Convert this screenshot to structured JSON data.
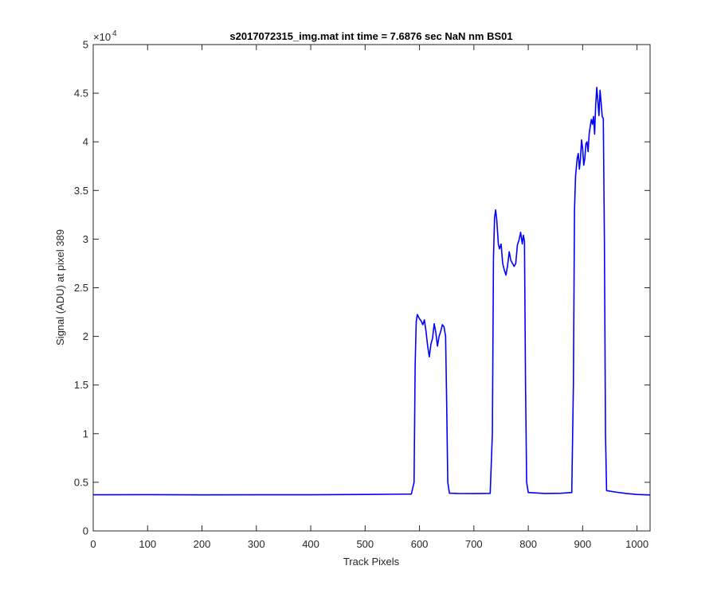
{
  "chart_data": {
    "type": "line",
    "title": "s2017072315_img.mat int time = 7.6876 sec  NaN nm BS01",
    "xlabel": "Track Pixels",
    "ylabel": "Signal (ADU) at pixel 389",
    "xlim": [
      0,
      1024
    ],
    "ylim": [
      0,
      50000
    ],
    "x_ticks": [
      0,
      100,
      200,
      300,
      400,
      500,
      600,
      700,
      800,
      900,
      1000
    ],
    "x_tick_labels": [
      "0",
      "100",
      "200",
      "300",
      "400",
      "500",
      "600",
      "700",
      "800",
      "900",
      "1000"
    ],
    "y_ticks": [
      0,
      5000,
      10000,
      15000,
      20000,
      25000,
      30000,
      35000,
      40000,
      45000,
      50000
    ],
    "y_tick_labels": [
      "0",
      "0.5",
      "1",
      "1.5",
      "2",
      "2.5",
      "3",
      "3.5",
      "4",
      "4.5",
      "5"
    ],
    "y_exponent": "×10",
    "y_exponent_power": "4",
    "grid": false,
    "series": [
      {
        "color": "#0000ff",
        "points": [
          [
            0,
            3720
          ],
          [
            100,
            3730
          ],
          [
            200,
            3710
          ],
          [
            300,
            3715
          ],
          [
            400,
            3720
          ],
          [
            500,
            3750
          ],
          [
            585,
            3790
          ],
          [
            590,
            5000
          ],
          [
            592,
            17000
          ],
          [
            594,
            21500
          ],
          [
            596,
            22250
          ],
          [
            600,
            21800
          ],
          [
            603,
            21600
          ],
          [
            606,
            21200
          ],
          [
            609,
            21700
          ],
          [
            612,
            20500
          ],
          [
            615,
            19000
          ],
          [
            618,
            17900
          ],
          [
            621,
            19200
          ],
          [
            624,
            19800
          ],
          [
            627,
            21300
          ],
          [
            630,
            20400
          ],
          [
            633,
            19000
          ],
          [
            636,
            20000
          ],
          [
            639,
            20500
          ],
          [
            642,
            21200
          ],
          [
            645,
            21000
          ],
          [
            648,
            20000
          ],
          [
            650,
            13000
          ],
          [
            652,
            5000
          ],
          [
            655,
            3880
          ],
          [
            670,
            3850
          ],
          [
            700,
            3840
          ],
          [
            730,
            3860
          ],
          [
            734,
            10000
          ],
          [
            736,
            28000
          ],
          [
            738,
            32200
          ],
          [
            740,
            33000
          ],
          [
            742,
            32000
          ],
          [
            745,
            29500
          ],
          [
            747,
            29000
          ],
          [
            750,
            29500
          ],
          [
            753,
            27500
          ],
          [
            756,
            26800
          ],
          [
            759,
            26300
          ],
          [
            762,
            27300
          ],
          [
            765,
            28700
          ],
          [
            768,
            27800
          ],
          [
            771,
            27500
          ],
          [
            774,
            27200
          ],
          [
            777,
            27500
          ],
          [
            780,
            29400
          ],
          [
            783,
            29900
          ],
          [
            786,
            30700
          ],
          [
            789,
            29500
          ],
          [
            791,
            30400
          ],
          [
            793,
            29800
          ],
          [
            795,
            15000
          ],
          [
            797,
            5000
          ],
          [
            800,
            3950
          ],
          [
            830,
            3850
          ],
          [
            860,
            3870
          ],
          [
            880,
            3950
          ],
          [
            883,
            15000
          ],
          [
            885,
            33000
          ],
          [
            887,
            36500
          ],
          [
            890,
            38300
          ],
          [
            892,
            38800
          ],
          [
            894,
            37200
          ],
          [
            896,
            38300
          ],
          [
            898,
            40200
          ],
          [
            900,
            39300
          ],
          [
            902,
            37600
          ],
          [
            904,
            38300
          ],
          [
            906,
            39800
          ],
          [
            908,
            40000
          ],
          [
            910,
            39000
          ],
          [
            912,
            40800
          ],
          [
            914,
            41600
          ],
          [
            916,
            42300
          ],
          [
            918,
            41800
          ],
          [
            920,
            42600
          ],
          [
            922,
            40800
          ],
          [
            924,
            43800
          ],
          [
            926,
            45600
          ],
          [
            928,
            44200
          ],
          [
            930,
            42700
          ],
          [
            932,
            45300
          ],
          [
            934,
            44000
          ],
          [
            936,
            42600
          ],
          [
            938,
            42400
          ],
          [
            940,
            30000
          ],
          [
            942,
            10000
          ],
          [
            944,
            4150
          ],
          [
            960,
            4000
          ],
          [
            980,
            3850
          ],
          [
            1000,
            3750
          ],
          [
            1024,
            3700
          ]
        ]
      }
    ]
  }
}
